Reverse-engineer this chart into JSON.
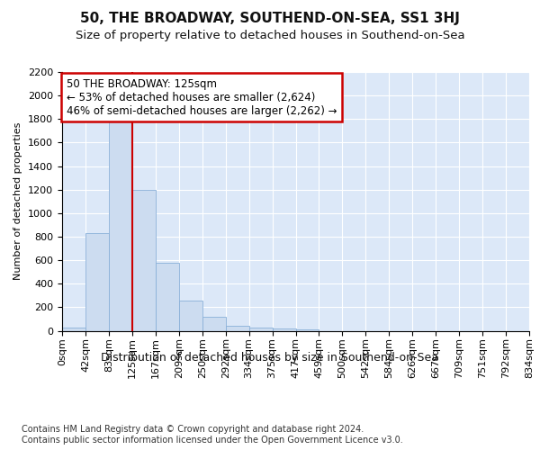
{
  "title": "50, THE BROADWAY, SOUTHEND-ON-SEA, SS1 3HJ",
  "subtitle": "Size of property relative to detached houses in Southend-on-Sea",
  "xlabel": "Distribution of detached houses by size in Southend-on-Sea",
  "ylabel": "Number of detached properties",
  "footnote1": "Contains HM Land Registry data © Crown copyright and database right 2024.",
  "footnote2": "Contains public sector information licensed under the Open Government Licence v3.0.",
  "bin_labels": [
    "0sqm",
    "42sqm",
    "83sqm",
    "125sqm",
    "167sqm",
    "209sqm",
    "250sqm",
    "292sqm",
    "334sqm",
    "375sqm",
    "417sqm",
    "459sqm",
    "500sqm",
    "542sqm",
    "584sqm",
    "626sqm",
    "667sqm",
    "709sqm",
    "751sqm",
    "792sqm",
    "834sqm"
  ],
  "bar_heights": [
    30,
    830,
    1800,
    1200,
    580,
    260,
    115,
    45,
    30,
    20,
    15,
    0,
    0,
    0,
    0,
    0,
    0,
    0,
    0,
    0
  ],
  "bar_color": "#ccdcf0",
  "bar_edge_color": "#8ab0d8",
  "vline_color": "#cc0000",
  "annotation_text": "50 THE BROADWAY: 125sqm\n← 53% of detached houses are smaller (2,624)\n46% of semi-detached houses are larger (2,262) →",
  "annotation_box_color": "#ffffff",
  "annotation_box_edge": "#cc0000",
  "ylim": [
    0,
    2200
  ],
  "yticks": [
    0,
    200,
    400,
    600,
    800,
    1000,
    1200,
    1400,
    1600,
    1800,
    2000,
    2200
  ],
  "bg_color": "#dce8f8",
  "fig_bg_color": "#ffffff",
  "title_fontsize": 11,
  "subtitle_fontsize": 9.5,
  "ylabel_fontsize": 8,
  "xlabel_fontsize": 9,
  "tick_fontsize": 8,
  "annot_fontsize": 8.5,
  "footnote_fontsize": 7
}
